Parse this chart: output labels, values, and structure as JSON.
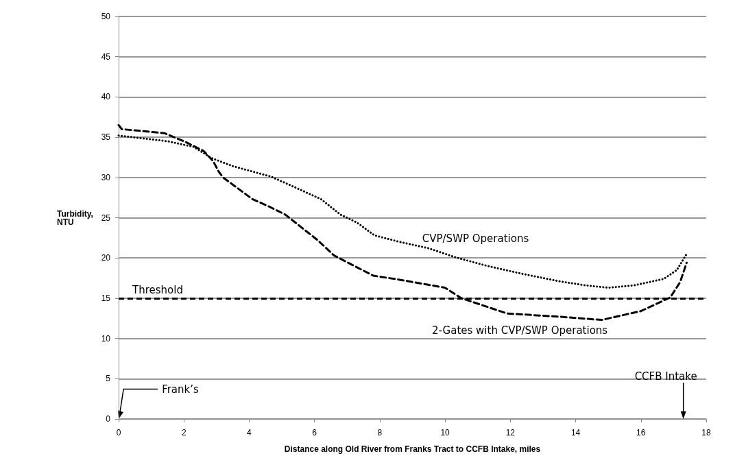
{
  "chart_data": {
    "type": "line",
    "xlabel": "Distance along Old River from Franks Tract to CCFB Intake, miles",
    "ylabel": "Turbidity,\nNTU",
    "xlim": [
      0,
      18
    ],
    "xticks": [
      0,
      2,
      4,
      6,
      8,
      10,
      12,
      14,
      16,
      18
    ],
    "ylim": [
      0,
      50
    ],
    "yticks": [
      0,
      5,
      10,
      15,
      20,
      25,
      30,
      35,
      40,
      45,
      50
    ],
    "grid": "y",
    "marker": "none",
    "series": [
      {
        "name": "CVP/SWP Operations",
        "color": "#000000",
        "line_style": "dotted",
        "x": [
          0,
          1.5,
          2.3,
          2.85,
          3.5,
          4.67,
          5.5,
          6.2,
          6.79,
          7.3,
          7.84,
          8.6,
          9.5,
          10.3,
          11.3,
          12.4,
          13.5,
          14.3,
          15.0,
          15.8,
          16.7,
          17.1,
          17.4
        ],
        "values": [
          35.2,
          34.5,
          33.8,
          32.4,
          31.4,
          30.1,
          28.6,
          27.3,
          25.4,
          24.4,
          22.8,
          22.0,
          21.2,
          20.1,
          19.0,
          18.0,
          17.1,
          16.6,
          16.3,
          16.6,
          17.4,
          18.5,
          20.5
        ]
      },
      {
        "name": "2-Gates with CVP/SWP Operations",
        "color": "#000000",
        "line_style": "dashed",
        "x": [
          0,
          0.1,
          1.4,
          2.0,
          2.6,
          2.9,
          3.07,
          3.2,
          4.1,
          4.55,
          5.1,
          6.1,
          6.6,
          7.8,
          8.6,
          10.0,
          10.5,
          11.9,
          13.5,
          14.8,
          16.0,
          16.9,
          17.2,
          17.4
        ],
        "values": [
          36.5,
          36.0,
          35.5,
          34.5,
          33.3,
          32.0,
          30.7,
          30.0,
          27.3,
          26.5,
          25.4,
          22.2,
          20.3,
          17.8,
          17.3,
          16.3,
          15.0,
          13.1,
          12.7,
          12.3,
          13.4,
          15.1,
          17.0,
          19.4
        ]
      }
    ],
    "ref_lines": [
      {
        "axis": "y",
        "value": 15,
        "label": "Threshold",
        "color": "#000000",
        "line_style": "dashed"
      }
    ],
    "annotations": [
      "Frank’s",
      "CCFB Intake"
    ]
  }
}
